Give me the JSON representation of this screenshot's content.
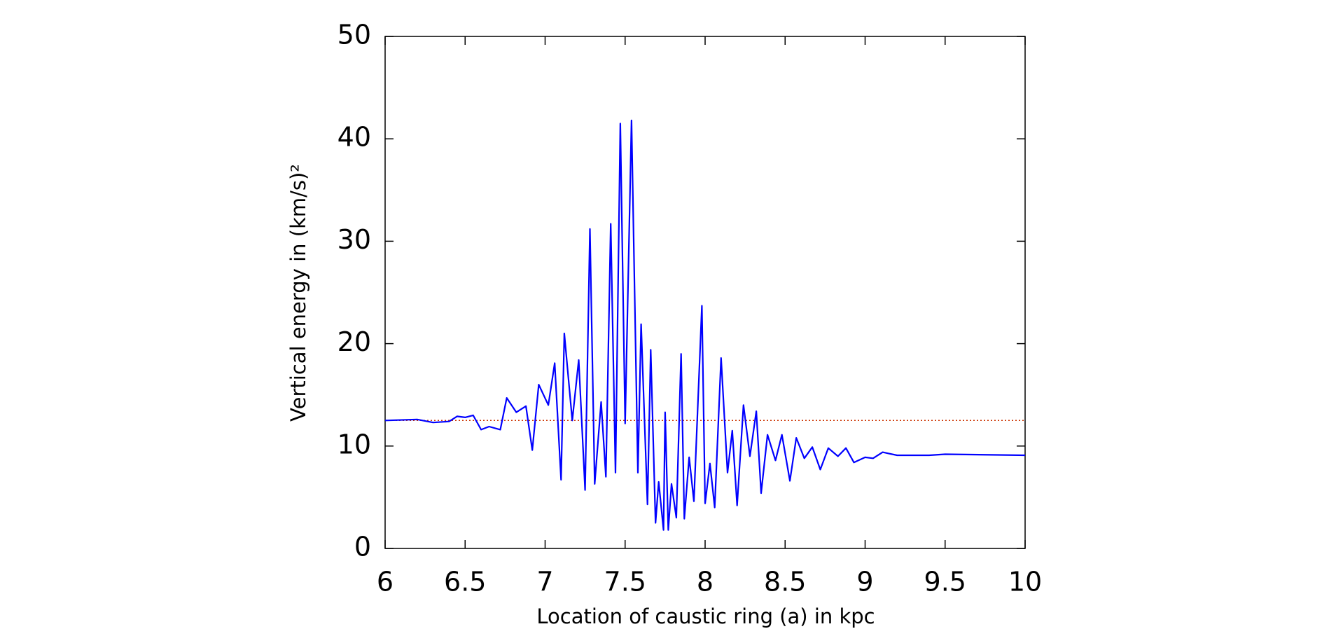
{
  "chart_data": {
    "type": "line",
    "xlabel": "Location of caustic ring (a) in kpc",
    "ylabel": "Vertical energy in (km/s)²",
    "x": [
      6.0,
      6.2,
      6.3,
      6.4,
      6.45,
      6.5,
      6.55,
      6.6,
      6.65,
      6.72,
      6.76,
      6.82,
      6.88,
      6.92,
      6.96,
      7.02,
      7.06,
      7.1,
      7.12,
      7.17,
      7.21,
      7.25,
      7.28,
      7.31,
      7.35,
      7.38,
      7.41,
      7.44,
      7.47,
      7.5,
      7.54,
      7.58,
      7.6,
      7.64,
      7.66,
      7.69,
      7.71,
      7.74,
      7.75,
      7.77,
      7.79,
      7.82,
      7.85,
      7.87,
      7.9,
      7.93,
      7.98,
      8.0,
      8.03,
      8.06,
      8.1,
      8.14,
      8.17,
      8.2,
      8.24,
      8.28,
      8.32,
      8.35,
      8.39,
      8.44,
      8.48,
      8.53,
      8.57,
      8.62,
      8.67,
      8.72,
      8.77,
      8.83,
      8.88,
      8.93,
      9.0,
      9.05,
      9.11,
      9.2,
      9.4,
      9.5,
      10.0
    ],
    "series": [
      {
        "color": "#0000ff",
        "values": [
          12.5,
          12.6,
          12.3,
          12.4,
          12.9,
          12.8,
          13.0,
          11.6,
          11.9,
          11.6,
          14.7,
          13.3,
          13.9,
          9.6,
          16.0,
          14.0,
          18.1,
          6.7,
          21.0,
          12.5,
          18.4,
          5.7,
          31.2,
          6.3,
          14.3,
          7.0,
          31.7,
          7.4,
          41.5,
          12.2,
          41.8,
          7.4,
          21.9,
          4.3,
          19.4,
          2.5,
          6.5,
          1.8,
          13.3,
          1.8,
          6.3,
          3.0,
          19.0,
          2.9,
          8.9,
          4.6,
          23.7,
          4.4,
          8.3,
          4.0,
          18.6,
          7.4,
          11.5,
          4.2,
          14.0,
          9.0,
          13.4,
          5.4,
          11.1,
          8.6,
          11.1,
          6.6,
          10.8,
          8.8,
          9.9,
          7.7,
          9.8,
          9.0,
          9.8,
          8.4,
          8.9,
          8.8,
          9.4,
          9.1,
          9.1,
          9.2,
          9.1
        ]
      }
    ],
    "hline": {
      "value": 12.5,
      "color": "#cc3300"
    },
    "xlim": [
      6,
      10
    ],
    "xticks": [
      6,
      6.5,
      7,
      7.5,
      8,
      8.5,
      9,
      9.5,
      10
    ],
    "ylim": [
      0,
      50
    ],
    "yticks": [
      0,
      10,
      20,
      30,
      40,
      50
    ]
  }
}
